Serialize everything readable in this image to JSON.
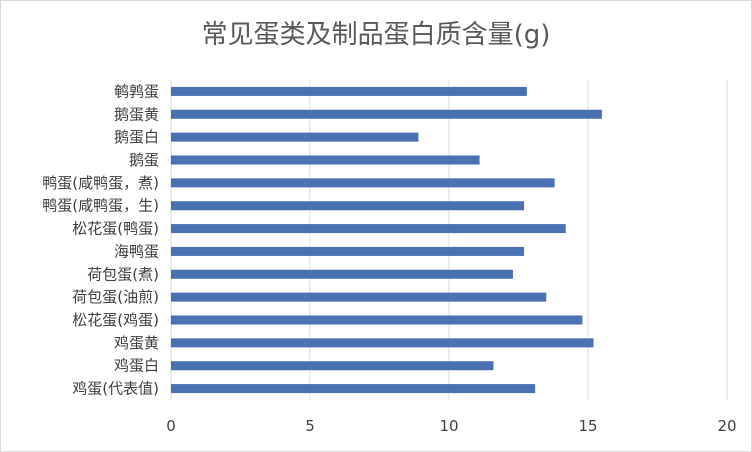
{
  "chart_data": {
    "type": "bar",
    "orientation": "horizontal",
    "title": "常见蛋类及制品蛋白质含量(g)",
    "xlabel": "",
    "ylabel": "",
    "xlim": [
      0,
      20
    ],
    "xticks": [
      0,
      5,
      10,
      15,
      20
    ],
    "grid": true,
    "legend": "none",
    "bar_color": "#4a72b2",
    "categories": [
      "鹌鹑蛋",
      "鹅蛋黄",
      "鹅蛋白",
      "鹅蛋",
      "鸭蛋(咸鸭蛋，煮)",
      "鸭蛋(咸鸭蛋，生)",
      "松花蛋(鸭蛋)",
      "海鸭蛋",
      "荷包蛋(煮)",
      "荷包蛋(油煎)",
      "松花蛋(鸡蛋)",
      "鸡蛋黄",
      "鸡蛋白",
      "鸡蛋(代表值)"
    ],
    "values": [
      12.8,
      15.5,
      8.9,
      11.1,
      13.8,
      12.7,
      14.2,
      12.7,
      12.3,
      13.5,
      14.8,
      15.2,
      11.6,
      13.1
    ]
  }
}
